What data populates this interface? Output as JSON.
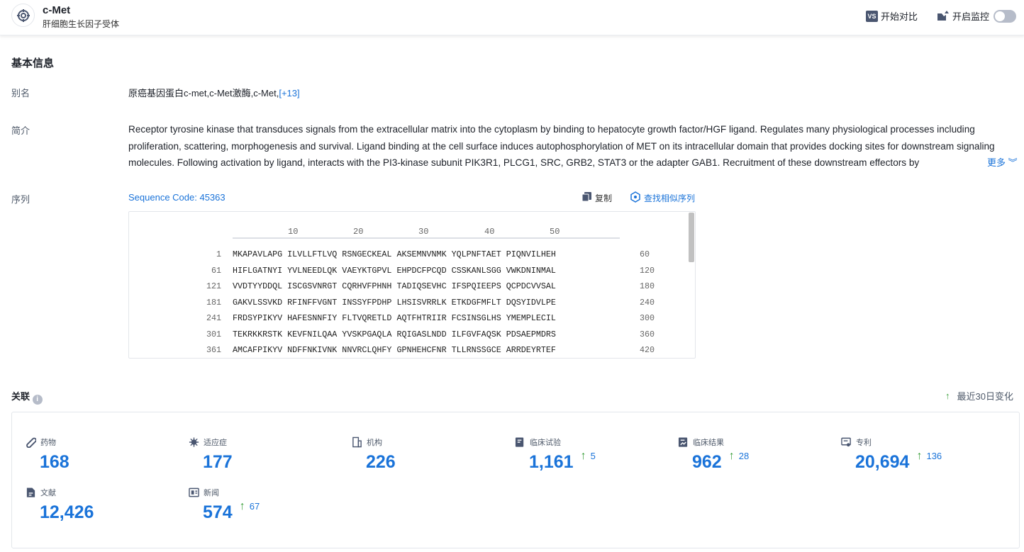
{
  "header": {
    "title": "c-Met",
    "subtitle": "肝细胞生长因子受体",
    "compare_label": "开始对比",
    "monitor_label": "开启监控",
    "monitor_on": false
  },
  "basic": {
    "section_title": "基本信息",
    "alias_label": "别名",
    "alias_value": "原癌基因蛋白c-met,c-Met激酶,c-Met,",
    "alias_more": "[+13]",
    "intro_label": "简介",
    "intro_text": "Receptor tyrosine kinase that transduces signals from the extracellular matrix into the cytoplasm by binding to hepatocyte growth factor/HGF ligand. Regulates many physiological processes including proliferation, scattering, morphogenesis and survival. Ligand binding at the cell surface induces autophosphorylation of MET on its intracellular domain that provides docking sites for downstream signaling molecules. Following activation by ligand, interacts with the PI3-kinase subunit PIK3R1, PLCG1, SRC, GRB2, STAT3 or the adapter GAB1. Recruitment of these downstream effectors by",
    "intro_more": "更多",
    "seq_label": "序列",
    "seq_code": "Sequence Code: 45363",
    "copy_label": "复制",
    "similar_label": "查找相似序列",
    "ruler": [
      "10",
      "20",
      "30",
      "40",
      "50"
    ],
    "rows": [
      {
        "start": "1",
        "seq": "MKAPAVLAPG ILVLLFTLVQ RSNGECKEAL AKSEMNVNMK YQLPNFTAET PIQNVILHEH",
        "end": "60"
      },
      {
        "start": "61",
        "seq": "HIFLGATNYI YVLNEEDLQK VAEYKTGPVL EHPDCFPCQD CSSKANLSGG VWKDNINMAL",
        "end": "120"
      },
      {
        "start": "121",
        "seq": "VVDTYYDDQL ISCGSVNRGT CQRHVFPHNH TADIQSEVHC IFSPQIEEPS QCPDCVVSAL",
        "end": "180"
      },
      {
        "start": "181",
        "seq": "GAKVLSSVKD RFINFFVGNT INSSYFPDHP LHSISVRRLK ETKDGFMFLT DQSYIDVLPE",
        "end": "240"
      },
      {
        "start": "241",
        "seq": "FRDSYPIKYV HAFESNNFIY FLTVQRETLD AQTFHTRIIR FCSINSGLHS YMEMPLECIL",
        "end": "300"
      },
      {
        "start": "301",
        "seq": "TEKRKKRSTK KEVFNILQAA YVSKPGAQLA RQIGASLNDD ILFGVFAQSK PDSAEPMDRS",
        "end": "360"
      },
      {
        "start": "361",
        "seq": "AMCAFPIKYV NDFFNKIVNK NNVRCLQHFY GPNHEHCFNR TLLRNSSGCE ARRDEYRTEF",
        "end": "420"
      }
    ]
  },
  "related": {
    "section_title": "关联",
    "change_label": "最近30日变化",
    "stats": [
      {
        "icon": "pill-icon",
        "label": "药物",
        "value": "168",
        "delta": ""
      },
      {
        "icon": "virus-icon",
        "label": "适应症",
        "value": "177",
        "delta": ""
      },
      {
        "icon": "building-icon",
        "label": "机构",
        "value": "226",
        "delta": ""
      },
      {
        "icon": "clinical-trial-icon",
        "label": "临床试验",
        "value": "1,161",
        "delta": "5"
      },
      {
        "icon": "clinical-result-icon",
        "label": "临床结果",
        "value": "962",
        "delta": "28"
      },
      {
        "icon": "patent-icon",
        "label": "专利",
        "value": "20,694",
        "delta": "136"
      },
      {
        "icon": "document-icon",
        "label": "文献",
        "value": "12,426",
        "delta": ""
      },
      {
        "icon": "news-icon",
        "label": "新闻",
        "value": "574",
        "delta": "67"
      }
    ]
  },
  "colors": {
    "accent": "#1a73d9",
    "up": "#3ca03c",
    "icon": "#4a5670"
  }
}
